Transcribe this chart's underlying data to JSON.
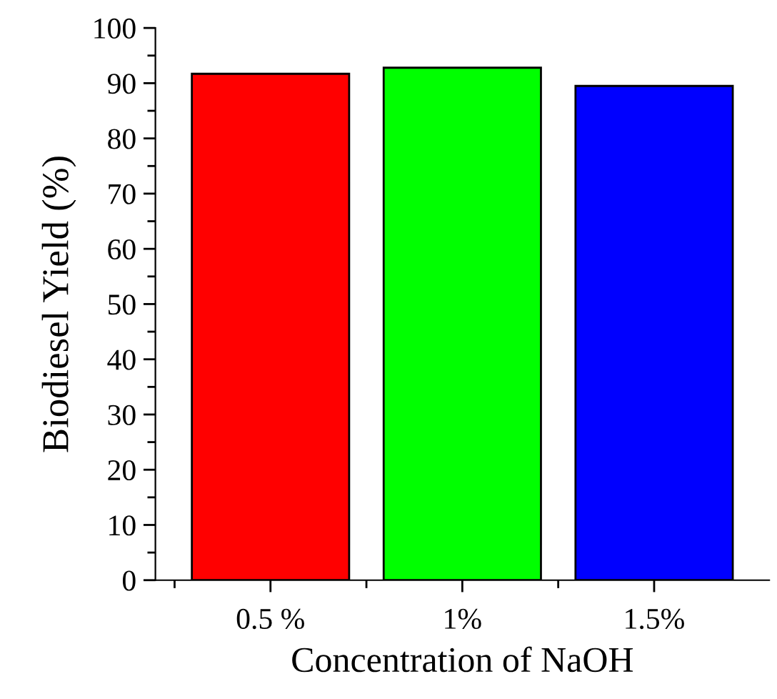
{
  "chart_data": {
    "type": "bar",
    "xlabel": "Concentration of NaOH",
    "ylabel": "Biodiesel Yield (%)",
    "categories": [
      "0.5 %",
      "1%",
      "1.5%"
    ],
    "values": [
      91.7,
      92.8,
      89.5
    ],
    "colors": [
      "#ff0000",
      "#00ff00",
      "#0000ff"
    ],
    "ylim": [
      0,
      100
    ],
    "yticks": [
      0,
      10,
      20,
      30,
      40,
      50,
      60,
      70,
      80,
      90,
      100
    ],
    "grid": false,
    "legend": false
  }
}
